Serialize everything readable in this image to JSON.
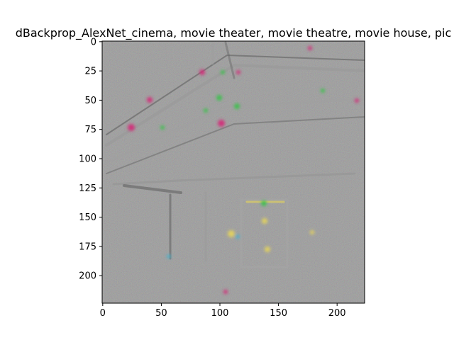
{
  "figure": {
    "title": "dBackprop_AlexNet_cinema, movie theater, movie theatre, movie house, pic",
    "image_width_units": 224,
    "image_height_units": 224
  },
  "axes": {
    "x_ticks": [
      {
        "value": 0,
        "label": "0"
      },
      {
        "value": 50,
        "label": "50"
      },
      {
        "value": 100,
        "label": "100"
      },
      {
        "value": 150,
        "label": "150"
      },
      {
        "value": 200,
        "label": "200"
      }
    ],
    "y_ticks": [
      {
        "value": 0,
        "label": "0"
      },
      {
        "value": 25,
        "label": "25"
      },
      {
        "value": 50,
        "label": "50"
      },
      {
        "value": 75,
        "label": "75"
      },
      {
        "value": 100,
        "label": "100"
      },
      {
        "value": 125,
        "label": "125"
      },
      {
        "value": 150,
        "label": "150"
      },
      {
        "value": 175,
        "label": "175"
      },
      {
        "value": 200,
        "label": "200"
      }
    ]
  },
  "colors": {
    "background_gray": "#808080",
    "accent_magenta": "#d0307a",
    "accent_green": "#3fbf4f",
    "accent_cyan": "#4fb0c8",
    "accent_yellow": "#e0d060"
  }
}
